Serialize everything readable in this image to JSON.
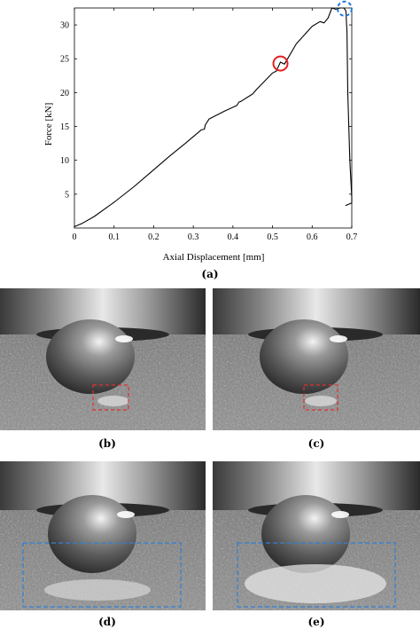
{
  "figure": {
    "panel_labels": [
      "(a)",
      "(b)",
      "(c)",
      "(d)",
      "(e)"
    ]
  },
  "chart_data": {
    "type": "line",
    "xlabel": "Axial Displacement [mm]",
    "ylabel": "Force [kN]",
    "xlim": [
      0,
      0.7
    ],
    "ylim": [
      0,
      32.5
    ],
    "x_ticks": [
      "0",
      "0.1",
      "0.2",
      "0.3",
      "0.4",
      "0.5",
      "0.6",
      "0.7"
    ],
    "y_ticks": [
      "5",
      "10",
      "15",
      "20",
      "25",
      "30"
    ],
    "x_tick_values": [
      0,
      0.1,
      0.2,
      0.3,
      0.4,
      0.5,
      0.6,
      0.7
    ],
    "y_tick_values": [
      5,
      10,
      15,
      20,
      25,
      30
    ],
    "grid": false,
    "series": [
      {
        "color": "#000000",
        "x": [
          0,
          0.02,
          0.05,
          0.1,
          0.15,
          0.19,
          0.24,
          0.28,
          0.32,
          0.328,
          0.33,
          0.34,
          0.38,
          0.41,
          0.415,
          0.42,
          0.45,
          0.46,
          0.47,
          0.5,
          0.51,
          0.512,
          0.52,
          0.53,
          0.56,
          0.6,
          0.62,
          0.63,
          0.64,
          0.65,
          0.66,
          0.67,
          0.68,
          0.685,
          0.688,
          0.69,
          0.695,
          0.7,
          0.7,
          0.7,
          0.684
        ],
        "y": [
          0.2,
          0.7,
          1.7,
          3.8,
          6.1,
          8.1,
          10.6,
          12.5,
          14.5,
          14.6,
          15.2,
          16.1,
          17.3,
          18.1,
          18.6,
          18.7,
          19.8,
          20.5,
          21.1,
          22.9,
          23.2,
          23.5,
          24.5,
          24.2,
          27.2,
          29.8,
          30.5,
          30.3,
          31.0,
          32.5,
          32.3,
          32.5,
          32.5,
          32.1,
          29.0,
          20.0,
          10.0,
          4.5,
          3.9,
          3.7,
          3.3
        ]
      }
    ],
    "annotations": [
      {
        "shape": "circle",
        "color": "#e02020",
        "x": 0.52,
        "y": 24.3
      },
      {
        "shape": "dashed-circle",
        "color": "#1f7bd8",
        "x": 0.682,
        "y": 32.4
      }
    ]
  },
  "photos": [
    {
      "label": "(b)",
      "box_color": "#e03030",
      "box_style": "dashed"
    },
    {
      "label": "(c)",
      "box_color": "#e03030",
      "box_style": "dashed"
    },
    {
      "label": "(d)",
      "box_color": "#2f7fd6",
      "box_style": "dashed"
    },
    {
      "label": "(e)",
      "box_color": "#2f7fd6",
      "box_style": "dashed"
    }
  ]
}
